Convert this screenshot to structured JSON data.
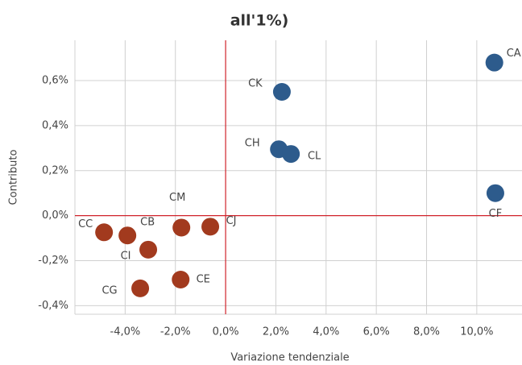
{
  "chart_data": {
    "type": "scatter",
    "title": "all'1%)",
    "x_label": "Variazione tendenziale",
    "y_label": "Contributo",
    "xlim": [
      -6.0,
      11.8
    ],
    "ylim": [
      -0.438,
      0.779
    ],
    "xticks": [
      {
        "value": -4,
        "label": "-4,0%"
      },
      {
        "value": -2,
        "label": "-2,0%"
      },
      {
        "value": 0,
        "label": "0,0%"
      },
      {
        "value": 2,
        "label": "2,0%"
      },
      {
        "value": 4,
        "label": "4,0%"
      },
      {
        "value": 6,
        "label": "6,0%"
      },
      {
        "value": 8,
        "label": "8,0%"
      },
      {
        "value": 10,
        "label": "10,0%"
      }
    ],
    "yticks": [
      {
        "value": -0.4,
        "label": "-0,4%"
      },
      {
        "value": -0.2,
        "label": "-0,2%"
      },
      {
        "value": 0,
        "label": "0,0%"
      },
      {
        "value": 0.2,
        "label": "0,2%"
      },
      {
        "value": 0.4,
        "label": "0,4%"
      },
      {
        "value": 0.6,
        "label": "0,6%"
      }
    ],
    "grid": true,
    "series": [
      {
        "color": "#2d5b8c",
        "labels": [
          "CA",
          "CK",
          "CH",
          "CL",
          "CF"
        ],
        "x": [
          10.7,
          2.24,
          2.12,
          2.6,
          10.74
        ],
        "values": [
          0.68,
          0.55,
          0.295,
          0.274,
          0.1
        ]
      },
      {
        "color": "#a23a1e",
        "labels": [
          "CC",
          "CB",
          "CI",
          "CM",
          "CJ",
          "CE",
          "CG"
        ],
        "x": [
          -4.84,
          -3.91,
          -3.08,
          -1.76,
          -0.61,
          -1.79,
          -3.4
        ],
        "values": [
          -0.074,
          -0.088,
          -0.151,
          -0.053,
          -0.049,
          -0.284,
          -0.323
        ]
      }
    ]
  }
}
